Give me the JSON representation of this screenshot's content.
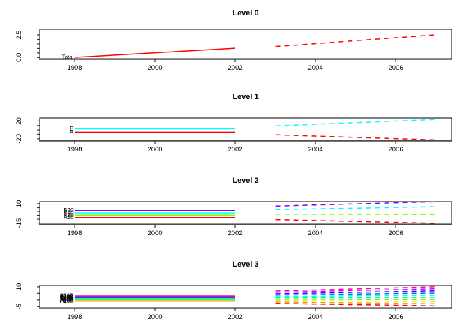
{
  "figure": {
    "background": "#ffffff",
    "description": "Hierarchical time series forecast plot with four stacked level panels, solid historical lines 1998-2002 and dashed forecast lines 2003-2007"
  },
  "chart_data": [
    {
      "type": "line",
      "title": "Level 0",
      "xlim": [
        1997.13,
        2007.39
      ],
      "ylim": [
        -0.13,
        3.12
      ],
      "xticks": [
        {
          "v": 1998,
          "label": "1998"
        },
        {
          "v": 2000,
          "label": "2000"
        },
        {
          "v": 2002,
          "label": "2002"
        },
        {
          "v": 2004,
          "label": "2004"
        },
        {
          "v": 2006,
          "label": "2006"
        }
      ],
      "yticks": [
        {
          "v": 0,
          "label": "0.0"
        },
        {
          "v": 0.5,
          "label": ""
        },
        {
          "v": 1,
          "label": ""
        },
        {
          "v": 1.5,
          "label": ""
        },
        {
          "v": 2,
          "label": ""
        },
        {
          "v": 2.5,
          "label": "2.5"
        }
      ],
      "years_history": [
        1998,
        1999,
        2000,
        2001,
        2002
      ],
      "years_forecast": [
        2003,
        2004,
        2005,
        2006,
        2007
      ],
      "series": [
        {
          "name": "Total",
          "color": "#FF0000",
          "history": [
            0.02,
            0.27,
            0.52,
            0.77,
            1.02
          ],
          "forecast": [
            1.21,
            1.53,
            1.86,
            2.18,
            2.51
          ]
        }
      ]
    },
    {
      "type": "line",
      "title": "Level 1",
      "xlim": [
        1997.13,
        2007.39
      ],
      "ylim": [
        -23.5,
        27.0
      ],
      "xticks": [
        {
          "v": 1998,
          "label": "1998"
        },
        {
          "v": 2000,
          "label": "2000"
        },
        {
          "v": 2002,
          "label": "2002"
        },
        {
          "v": 2004,
          "label": "2004"
        },
        {
          "v": 2006,
          "label": "2006"
        }
      ],
      "yticks": [
        {
          "v": -20,
          "label": "-20"
        },
        {
          "v": -10,
          "label": ""
        },
        {
          "v": 0,
          "label": ""
        },
        {
          "v": 10,
          "label": ""
        },
        {
          "v": 20,
          "label": "20"
        }
      ],
      "years_history": [
        1998,
        1999,
        2000,
        2001,
        2002
      ],
      "years_forecast": [
        2003,
        2004,
        2005,
        2006,
        2007
      ],
      "series": [
        {
          "name": "A",
          "color": "#FF0000",
          "history": [
            -5.1,
            -5.1,
            -5.1,
            -5.1,
            -5.1
          ],
          "forecast": [
            -11.2,
            -14.1,
            -17.0,
            -19.8,
            -22.6
          ]
        },
        {
          "name": "B",
          "color": "#00FFFF",
          "history": [
            2.6,
            2.6,
            2.6,
            2.6,
            2.6
          ],
          "forecast": [
            9.2,
            12.8,
            16.4,
            19.9,
            23.5
          ]
        }
      ]
    },
    {
      "type": "line",
      "title": "Level 2",
      "xlim": [
        1997.13,
        2007.39
      ],
      "ylim": [
        -16.3,
        12.7
      ],
      "xticks": [
        {
          "v": 1998,
          "label": "1998"
        },
        {
          "v": 2000,
          "label": "2000"
        },
        {
          "v": 2002,
          "label": "2002"
        },
        {
          "v": 2004,
          "label": "2004"
        },
        {
          "v": 2006,
          "label": "2006"
        }
      ],
      "yticks": [
        {
          "v": -15,
          "label": "-15"
        },
        {
          "v": -10,
          "label": ""
        },
        {
          "v": -5,
          "label": ""
        },
        {
          "v": 0,
          "label": ""
        },
        {
          "v": 5,
          "label": ""
        },
        {
          "v": 10,
          "label": "10"
        }
      ],
      "years_history": [
        1998,
        1999,
        2000,
        2001,
        2002
      ],
      "years_forecast": [
        2003,
        2004,
        2005,
        2006,
        2007
      ],
      "series": [
        {
          "name": "A10",
          "color": "#FF0000",
          "history": [
            -7.9,
            -7.9,
            -7.9,
            -7.9,
            -7.9
          ],
          "forecast": [
            -10.5,
            -11.7,
            -12.9,
            -14.1,
            -15.3
          ]
        },
        {
          "name": "A20",
          "color": "#80FF00",
          "history": [
            -4.8,
            -4.8,
            -4.8,
            -4.8,
            -4.8
          ],
          "forecast": [
            -3.5,
            -3.6,
            -3.7,
            -3.8,
            -3.9
          ]
        },
        {
          "name": "B10",
          "color": "#00FFFF",
          "history": [
            -1.8,
            -1.8,
            -1.8,
            -1.8,
            -1.8
          ],
          "forecast": [
            2.4,
            3.4,
            4.3,
            5.3,
            6.3
          ]
        },
        {
          "name": "B20",
          "color": "#8000FF",
          "history": [
            1.2,
            1.2,
            1.2,
            1.2,
            1.2
          ],
          "forecast": [
            7.0,
            8.4,
            9.8,
            11.2,
            12.5
          ]
        }
      ]
    },
    {
      "type": "line",
      "title": "Level 3",
      "xlim": [
        1997.13,
        2007.39
      ],
      "ylim": [
        -5.9,
        11.0
      ],
      "xticks": [
        {
          "v": 1998,
          "label": "1998"
        },
        {
          "v": 2000,
          "label": "2000"
        },
        {
          "v": 2002,
          "label": "2002"
        },
        {
          "v": 2004,
          "label": "2004"
        },
        {
          "v": 2006,
          "label": "2006"
        }
      ],
      "yticks": [
        {
          "v": -5,
          "label": "-5"
        },
        {
          "v": 0,
          "label": ""
        },
        {
          "v": 5,
          "label": ""
        },
        {
          "v": 10,
          "label": "10"
        }
      ],
      "years_history": [
        1998,
        1999,
        2000,
        2001,
        2002
      ],
      "years_forecast": [
        2003,
        2004,
        2005,
        2006,
        2007
      ],
      "series": [
        {
          "name": "A10A",
          "color": "#FF0000",
          "history": [
            -0.9,
            -0.9,
            -0.9,
            -0.9,
            -0.9
          ],
          "forecast": [
            -2.6,
            -3.1,
            -3.6,
            -4.0,
            -4.5
          ]
        },
        {
          "name": "A10B",
          "color": "#FF9900",
          "history": [
            -0.5,
            -0.5,
            -0.5,
            -0.5,
            -0.5
          ],
          "forecast": [
            -1.6,
            -1.9,
            -2.2,
            -2.5,
            -2.9
          ]
        },
        {
          "name": "A10C",
          "color": "#CCFF00",
          "history": [
            0.0,
            0.0,
            0.0,
            0.0,
            0.0
          ],
          "forecast": [
            -0.5,
            -0.7,
            -0.9,
            -1.1,
            -1.3
          ]
        },
        {
          "name": "A20A",
          "color": "#33FF00",
          "history": [
            0.4,
            0.4,
            0.4,
            0.4,
            0.4
          ],
          "forecast": [
            0.5,
            0.5,
            0.4,
            0.4,
            0.4
          ]
        },
        {
          "name": "A20B",
          "color": "#00FF66",
          "history": [
            0.9,
            0.9,
            0.9,
            0.9,
            0.9
          ],
          "forecast": [
            1.6,
            1.7,
            1.8,
            1.9,
            2.0
          ]
        },
        {
          "name": "B10A",
          "color": "#00FFFF",
          "history": [
            1.3,
            1.3,
            1.3,
            1.3,
            1.3
          ],
          "forecast": [
            2.6,
            2.9,
            3.2,
            3.4,
            3.6
          ]
        },
        {
          "name": "B10B",
          "color": "#0066FF",
          "history": [
            1.8,
            1.8,
            1.8,
            1.8,
            1.8
          ],
          "forecast": [
            3.7,
            4.1,
            4.5,
            4.9,
            5.2
          ]
        },
        {
          "name": "B10C",
          "color": "#3300FF",
          "history": [
            2.2,
            2.2,
            2.2,
            2.2,
            2.2
          ],
          "forecast": [
            4.7,
            5.2,
            5.8,
            6.3,
            6.9
          ]
        },
        {
          "name": "B20A",
          "color": "#CC00FF",
          "history": [
            2.7,
            2.7,
            2.7,
            2.7,
            2.7
          ],
          "forecast": [
            5.8,
            6.5,
            7.2,
            7.8,
            8.5
          ]
        },
        {
          "name": "B20B",
          "color": "#FF0099",
          "history": [
            3.1,
            3.1,
            3.1,
            3.1,
            3.1
          ],
          "forecast": [
            6.8,
            7.6,
            8.4,
            9.2,
            10.1
          ]
        }
      ]
    }
  ]
}
